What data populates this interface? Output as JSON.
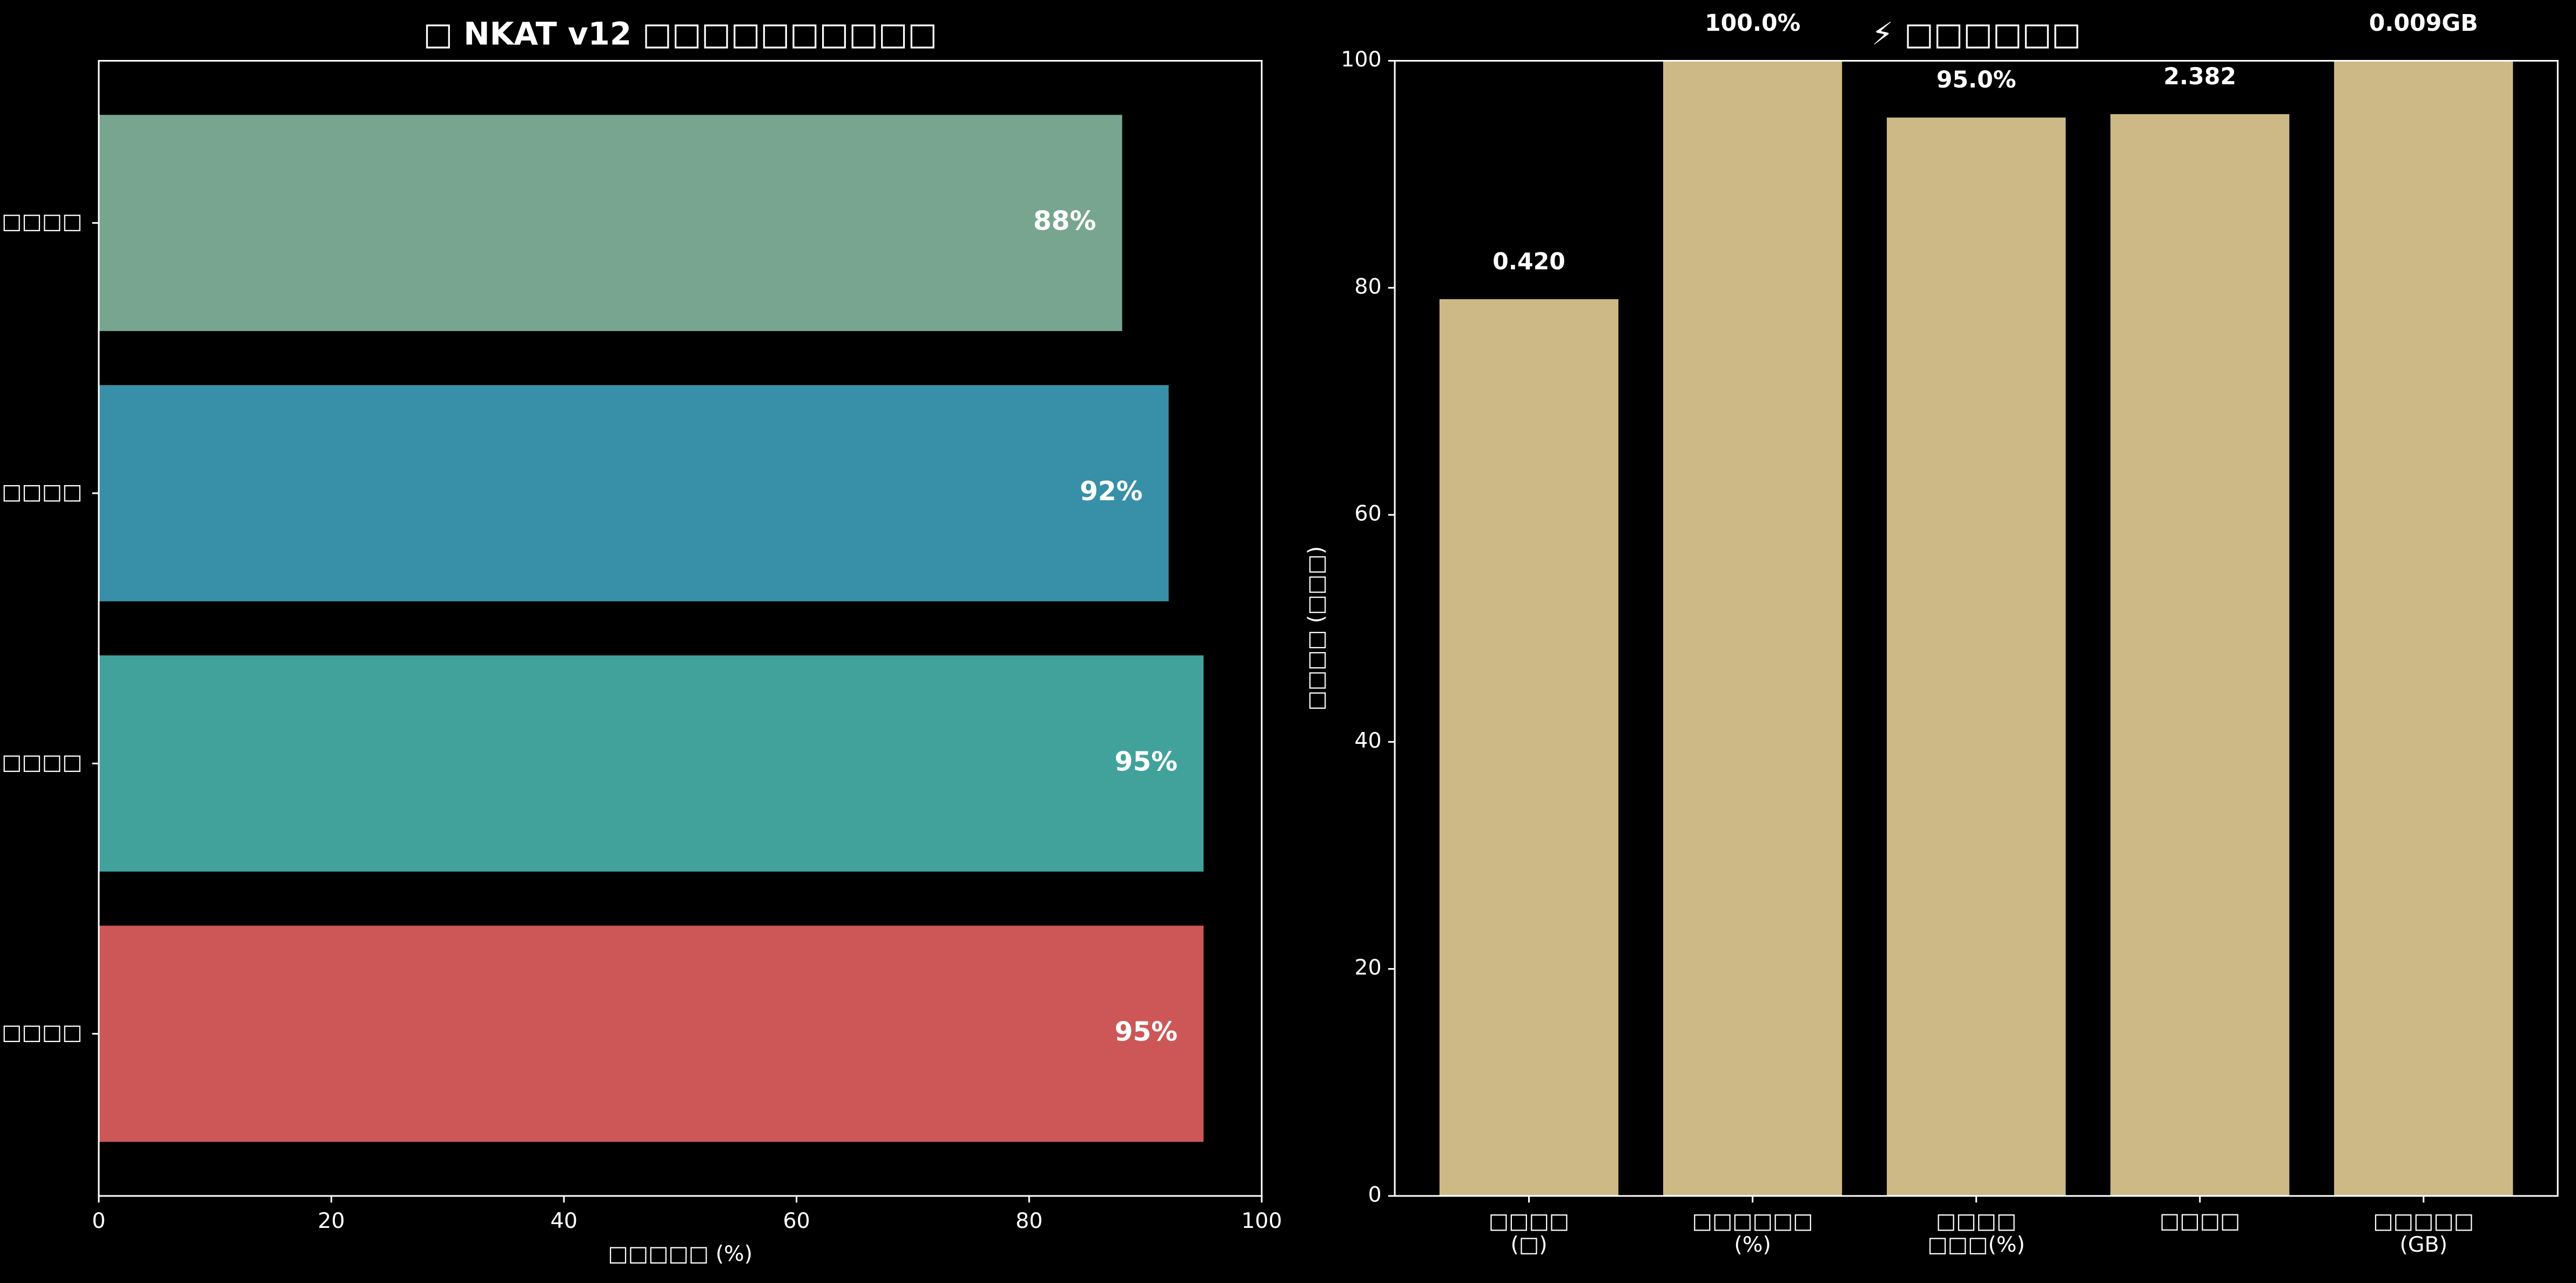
{
  "chart_data": [
    {
      "type": "barh",
      "title": "□ NKAT v12 □□□□□□□□□□",
      "xlabel": "□□□□□ (%)",
      "categories": [
        "□□□□",
        "□□□□",
        "□□□□□",
        "□□□□"
      ],
      "values": [
        95,
        95,
        92,
        88
      ],
      "value_labels": [
        "95%",
        "95%",
        "92%",
        "88%"
      ],
      "colors": [
        "#cd5757",
        "#41a29b",
        "#388fa8",
        "#78a58f"
      ],
      "xlim": [
        0,
        100
      ],
      "xticks": [
        0,
        20,
        40,
        60,
        80,
        100
      ],
      "grid": false
    },
    {
      "type": "bar",
      "title": "⚡ □□□□□□",
      "ylabel": "□□□□ (□□□)",
      "categories": [
        "□□□□\n(□)",
        "□□□□□□\n(%)",
        "□□□□\n□□□(%)",
        "□□□□",
        "□□□□□\n(GB)"
      ],
      "values": [
        79,
        100,
        95,
        95.3,
        100
      ],
      "annotations": [
        "0.420",
        "100.0%",
        "95.0%",
        "2.382",
        "0.009GB"
      ],
      "color": "#cdb986",
      "ylim": [
        0,
        100
      ],
      "yticks": [
        0,
        20,
        40,
        60,
        80,
        100
      ],
      "grid": false
    }
  ]
}
